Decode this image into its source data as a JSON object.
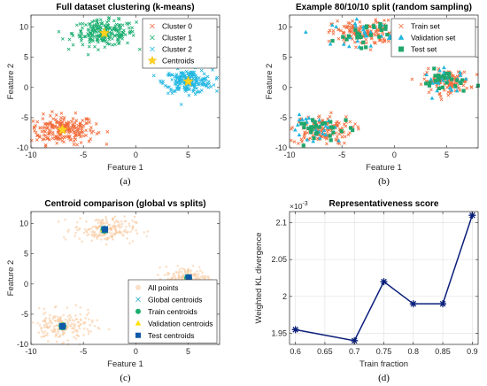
{
  "colors": {
    "cluster0": "#f26b3a",
    "cluster1": "#1aae6f",
    "cluster2": "#21b7e3",
    "centroid_star": "#ffd320",
    "validation": "#1fb6dd",
    "test": "#21a66c",
    "all_points": "#f8c79a",
    "global_centroid": "#1fa6c8",
    "train_centroid": "#1aae6f",
    "val_centroid": "#ffe000",
    "test_centroid": "#0f5aa8",
    "line": "#0a1e7a"
  },
  "chart_data": [
    {
      "id": "a",
      "type": "scatter",
      "title": "Full dataset clustering (k-means)",
      "xlabel": "Feature 1",
      "ylabel": "Feature 2",
      "xlim": [
        -10,
        8
      ],
      "ylim": [
        -10,
        12
      ],
      "xticks": [
        -10,
        -5,
        0,
        5
      ],
      "yticks": [
        -10,
        -5,
        0,
        5,
        10
      ],
      "caption": "(a)",
      "legend_position": "top-right",
      "legend": [
        {
          "label": "Cluster 0",
          "marker": "x",
          "color": "cluster0"
        },
        {
          "label": "Cluster 1",
          "marker": "x",
          "color": "cluster1"
        },
        {
          "label": "Cluster 2",
          "marker": "x",
          "color": "cluster2"
        },
        {
          "label": "Centroids",
          "marker": "star",
          "color": "centroid_star"
        }
      ],
      "series": [
        {
          "name": "Cluster 0",
          "marker": "x",
          "color": "cluster0",
          "center": [
            -7,
            -7
          ],
          "spread": [
            1.55,
            1.2
          ],
          "n": 230
        },
        {
          "name": "Cluster 1",
          "marker": "x",
          "color": "cluster1",
          "center": [
            -3,
            9
          ],
          "spread": [
            1.5,
            1.05
          ],
          "n": 220
        },
        {
          "name": "Cluster 2",
          "marker": "x",
          "color": "cluster2",
          "center": [
            5,
            1
          ],
          "spread": [
            1.15,
            0.95
          ],
          "n": 200
        },
        {
          "name": "Centroids",
          "marker": "star",
          "color": "centroid_star",
          "points": [
            [
              -7,
              -7
            ],
            [
              -3,
              9
            ],
            [
              5,
              1
            ]
          ]
        }
      ]
    },
    {
      "id": "b",
      "type": "scatter",
      "title": "Example 80/10/10 split (random sampling)",
      "xlabel": "Feature 1",
      "ylabel": "Feature 2",
      "xlim": [
        -10,
        8
      ],
      "ylim": [
        -10,
        12
      ],
      "xticks": [
        -10,
        -5,
        0,
        5
      ],
      "yticks": [
        -10,
        -5,
        0,
        5,
        10
      ],
      "caption": "(b)",
      "legend_position": "top-right",
      "legend": [
        {
          "label": "Train set",
          "marker": "x",
          "color": "cluster0"
        },
        {
          "label": "Validation set",
          "marker": "triangle",
          "color": "validation"
        },
        {
          "label": "Test set",
          "marker": "square",
          "color": "test"
        }
      ],
      "series": [
        {
          "name": "Train set",
          "marker": "x",
          "color": "cluster0",
          "clusters": [
            [
              -7,
              -7,
              1.5,
              1.2,
              140
            ],
            [
              -3,
              9,
              1.45,
              1.05,
              135
            ],
            [
              5,
              1,
              1.1,
              0.95,
              120
            ]
          ]
        },
        {
          "name": "Validation set",
          "marker": "triangle",
          "color": "validation",
          "clusters": [
            [
              -7,
              -7,
              1.5,
              1.2,
              30
            ],
            [
              -3,
              9,
              1.45,
              1.05,
              30
            ],
            [
              5,
              1,
              1.1,
              0.95,
              26
            ]
          ]
        },
        {
          "name": "Test set",
          "marker": "square",
          "color": "test",
          "clusters": [
            [
              -7,
              -7,
              1.5,
              1.2,
              30
            ],
            [
              -3,
              9,
              1.45,
              1.05,
              30
            ],
            [
              5,
              1,
              1.1,
              0.95,
              26
            ]
          ]
        }
      ]
    },
    {
      "id": "c",
      "type": "scatter",
      "title": "Centroid comparison (global vs splits)",
      "xlabel": "Feature 1",
      "ylabel": "Feature 2",
      "xlim": [
        -10,
        8
      ],
      "ylim": [
        -10,
        12
      ],
      "xticks": [
        -10,
        -5,
        0,
        5
      ],
      "yticks": [
        -10,
        -5,
        0,
        5,
        10
      ],
      "caption": "(c)",
      "legend_position": "bottom-right",
      "legend": [
        {
          "label": "All points",
          "marker": "dot",
          "color": "all_points"
        },
        {
          "label": "Global centroids",
          "marker": "x",
          "color": "global_centroid"
        },
        {
          "label": "Train centroids",
          "marker": "circle",
          "color": "train_centroid"
        },
        {
          "label": "Validation centroids",
          "marker": "triangle",
          "color": "val_centroid"
        },
        {
          "label": "Test centroids",
          "marker": "square",
          "color": "test_centroid"
        }
      ],
      "series": [
        {
          "name": "All points",
          "marker": "dot",
          "color": "all_points",
          "clusters": [
            [
              -7,
              -7,
              1.5,
              1.2,
              200
            ],
            [
              -3,
              9,
              1.45,
              1.05,
              190
            ],
            [
              5,
              1,
              1.1,
              0.95,
              170
            ]
          ]
        },
        {
          "name": "Global centroids",
          "marker": "x",
          "color": "global_centroid",
          "points": [
            [
              -7,
              -7
            ],
            [
              -3,
              9
            ],
            [
              5,
              1
            ]
          ]
        },
        {
          "name": "Train centroids",
          "marker": "circle",
          "color": "train_centroid",
          "points": [
            [
              -7,
              -7
            ],
            [
              -3,
              9
            ],
            [
              5,
              1
            ]
          ]
        },
        {
          "name": "Validation centroids",
          "marker": "triangle",
          "color": "val_centroid",
          "points": [
            [
              -7.05,
              -6.95
            ],
            [
              -3.05,
              9.0
            ],
            [
              4.95,
              0.95
            ]
          ]
        },
        {
          "name": "Test centroids",
          "marker": "square",
          "color": "test_centroid",
          "points": [
            [
              -7.0,
              -7.0
            ],
            [
              -2.95,
              9.05
            ],
            [
              5.05,
              1.05
            ]
          ]
        }
      ]
    },
    {
      "id": "d",
      "type": "line",
      "title": "Representativeness score",
      "xlabel": "Train fraction",
      "ylabel": "Weighted KL divergence",
      "y_exponent_label": "×10",
      "y_exponent": "-3",
      "xlim": [
        0.59,
        0.91
      ],
      "ylim": [
        1.935,
        2.115
      ],
      "xticks": [
        0.6,
        0.65,
        0.7,
        0.75,
        0.8,
        0.85,
        0.9
      ],
      "xticklabels": [
        "0.6",
        "0.65",
        "0.7",
        "0.75",
        "0.8",
        "0.85",
        "0.9"
      ],
      "yticks": [
        1.95,
        2.0,
        2.05,
        2.1
      ],
      "yticklabels": [
        "1.95",
        "2",
        "2.05",
        "2.1"
      ],
      "grid": true,
      "caption": "(d)",
      "series": [
        {
          "x": [
            0.6,
            0.7,
            0.75,
            0.8,
            0.85,
            0.9
          ],
          "y": [
            1.955,
            1.94,
            2.02,
            1.99,
            1.99,
            2.11
          ],
          "color": "line",
          "marker": "asterisk"
        }
      ]
    }
  ]
}
